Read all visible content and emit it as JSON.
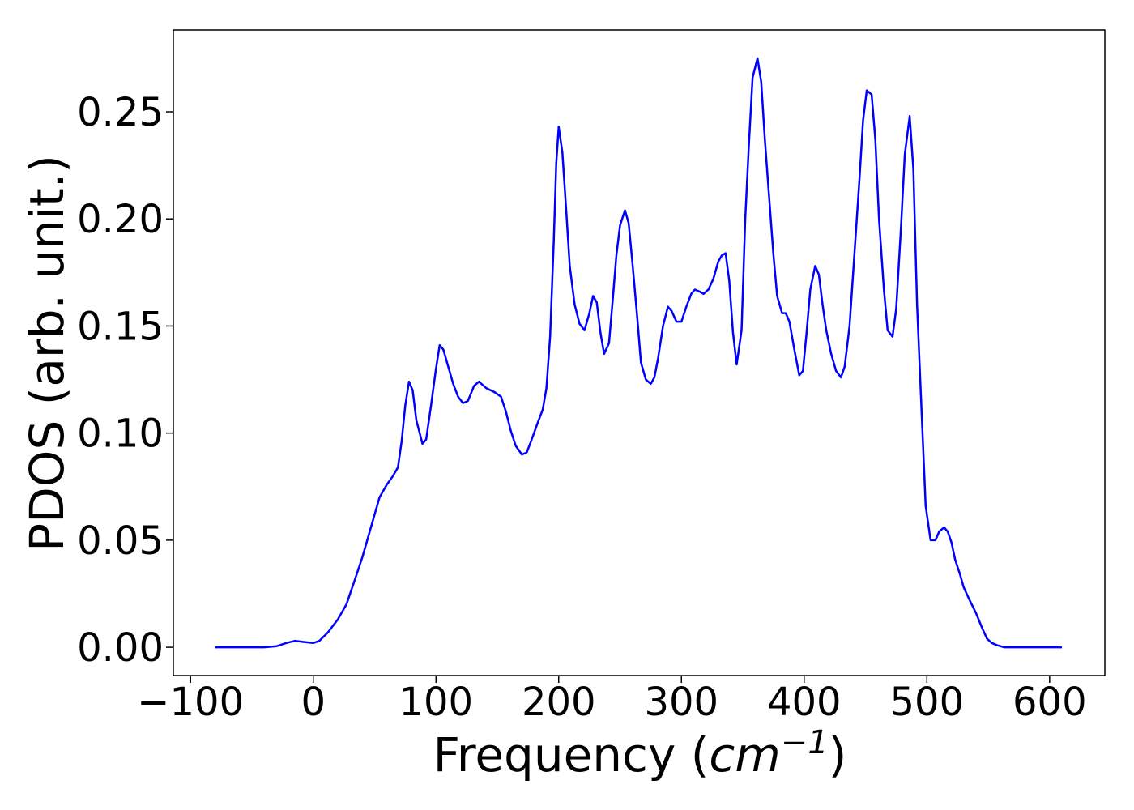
{
  "chart_data": {
    "type": "line",
    "xlabel": [
      "Frequency (",
      "cm",
      "−1",
      ")"
    ],
    "ylabel": "PDOS (arb. unit.)",
    "color": "#0000ff",
    "x": [
      -80,
      -60,
      -40,
      -30,
      -22,
      -15,
      -8,
      0,
      5,
      12,
      20,
      27,
      33,
      40,
      47,
      54,
      60,
      65,
      69,
      72,
      75,
      78,
      81,
      84,
      89,
      92,
      96,
      100,
      103,
      106,
      110,
      114,
      118,
      122,
      126,
      131,
      135,
      141,
      148,
      153,
      157,
      161,
      165,
      170,
      174,
      178,
      183,
      187,
      190,
      193,
      196,
      198,
      200,
      203,
      206,
      209,
      213,
      217,
      221,
      225,
      228,
      231,
      234,
      237,
      241,
      244,
      247,
      250,
      254,
      257,
      260,
      264,
      267,
      271,
      275,
      278,
      281,
      285,
      289,
      292,
      296,
      300,
      304,
      308,
      311,
      315,
      318,
      322,
      326,
      330,
      333,
      336,
      339,
      342,
      345,
      349,
      352,
      355,
      358,
      362,
      365,
      368,
      372,
      375,
      378,
      382,
      385,
      388,
      392,
      396,
      399,
      402,
      405,
      409,
      412,
      415,
      418,
      422,
      426,
      430,
      433,
      437,
      441,
      445,
      448,
      451,
      455,
      458,
      461,
      465,
      468,
      472,
      475,
      479,
      482,
      486,
      489,
      492,
      496,
      499,
      503,
      507,
      510,
      514,
      517,
      520,
      523,
      527,
      530,
      534,
      540,
      545,
      549,
      553,
      557,
      563,
      580,
      610
    ],
    "values": [
      0,
      0,
      0,
      0.0005,
      0.002,
      0.003,
      0.0025,
      0.002,
      0.003,
      0.007,
      0.013,
      0.02,
      0.03,
      0.042,
      0.056,
      0.07,
      0.076,
      0.08,
      0.084,
      0.096,
      0.113,
      0.124,
      0.12,
      0.106,
      0.095,
      0.097,
      0.113,
      0.13,
      0.141,
      0.139,
      0.131,
      0.123,
      0.117,
      0.114,
      0.115,
      0.122,
      0.124,
      0.121,
      0.119,
      0.117,
      0.11,
      0.101,
      0.094,
      0.09,
      0.091,
      0.097,
      0.105,
      0.111,
      0.121,
      0.145,
      0.19,
      0.226,
      0.243,
      0.231,
      0.205,
      0.178,
      0.16,
      0.151,
      0.148,
      0.156,
      0.164,
      0.161,
      0.147,
      0.137,
      0.142,
      0.162,
      0.183,
      0.197,
      0.204,
      0.198,
      0.18,
      0.154,
      0.133,
      0.125,
      0.123,
      0.126,
      0.135,
      0.15,
      0.159,
      0.157,
      0.152,
      0.152,
      0.159,
      0.165,
      0.167,
      0.166,
      0.165,
      0.167,
      0.172,
      0.18,
      0.183,
      0.184,
      0.171,
      0.147,
      0.132,
      0.148,
      0.2,
      0.235,
      0.266,
      0.275,
      0.264,
      0.237,
      0.206,
      0.183,
      0.164,
      0.156,
      0.156,
      0.152,
      0.139,
      0.127,
      0.129,
      0.147,
      0.167,
      0.178,
      0.174,
      0.16,
      0.148,
      0.137,
      0.129,
      0.126,
      0.131,
      0.15,
      0.184,
      0.218,
      0.246,
      0.26,
      0.258,
      0.237,
      0.2,
      0.167,
      0.148,
      0.145,
      0.158,
      0.197,
      0.23,
      0.248,
      0.223,
      0.16,
      0.106,
      0.066,
      0.05,
      0.05,
      0.054,
      0.056,
      0.054,
      0.049,
      0.041,
      0.034,
      0.028,
      0.023,
      0.016,
      0.009,
      0.004,
      0.002,
      0.001,
      0,
      0,
      0
    ],
    "xlim": [
      -114,
      645
    ],
    "xticks": [
      {
        "value": -100,
        "label": "−100"
      },
      0,
      100,
      200,
      300,
      400,
      500,
      600
    ],
    "ylim": [
      -0.0132,
      0.2882
    ],
    "yticks": [
      {
        "value": 0,
        "label": "0.00"
      },
      {
        "value": 0.05,
        "label": "0.05"
      },
      {
        "value": 0.1,
        "label": "0.10"
      },
      {
        "value": 0.15,
        "label": "0.15"
      },
      {
        "value": 0.2,
        "label": "0.20"
      },
      {
        "value": 0.25,
        "label": "0.25"
      }
    ]
  }
}
